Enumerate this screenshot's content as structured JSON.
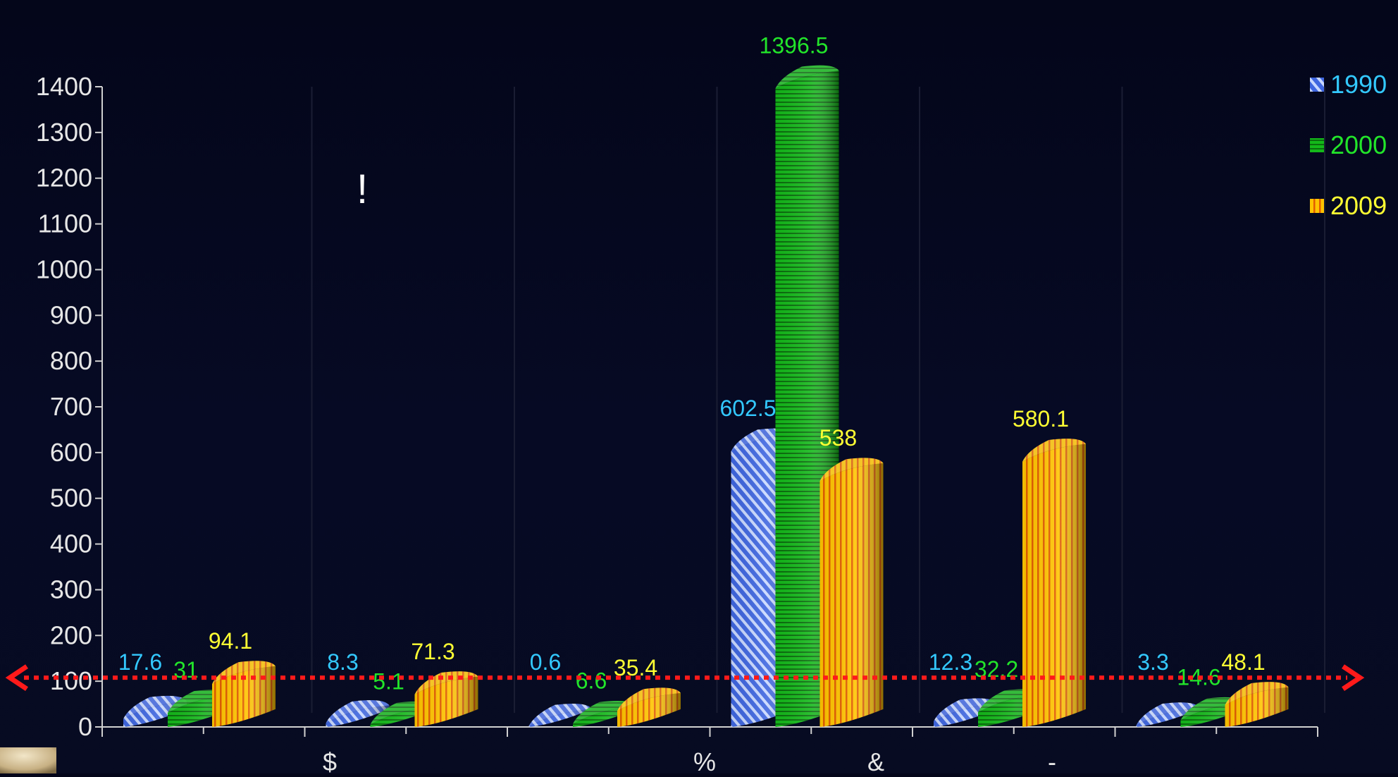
{
  "chart_data": {
    "type": "bar",
    "title": "",
    "annotation": "!",
    "categories": [
      "",
      "$",
      "",
      "%",
      "&",
      "-"
    ],
    "series": [
      {
        "name": "1990",
        "values": [
          17.6,
          8.3,
          0.6,
          602.5,
          12.3,
          3.3
        ],
        "color": "#4f7df5",
        "label_color": "#33c9ff"
      },
      {
        "name": "2000",
        "values": [
          31,
          5.1,
          6.6,
          1396.5,
          32.2,
          14.6
        ],
        "color": "#19c21f",
        "label_color": "#22e52a"
      },
      {
        "name": "2009",
        "values": [
          94.1,
          71.3,
          35.4,
          538,
          580.1,
          48.1
        ],
        "color": "#f5b400",
        "label_color": "#ffff33"
      }
    ],
    "data_labels": [
      [
        "17.6",
        "8.3",
        "0.6",
        "602.5",
        "12.3",
        "3.3"
      ],
      [
        "31",
        "5.1",
        "6.6",
        "1396.5",
        "32.2",
        "14.6"
      ],
      [
        "94.1",
        "71.3",
        "35.4",
        "538",
        "580.1",
        "48.1"
      ]
    ],
    "ylim": [
      0,
      1400
    ],
    "yticks": [
      "0",
      "100",
      "200",
      "300",
      "400",
      "500",
      "600",
      "700",
      "800",
      "900",
      "1000",
      "1100",
      "1200",
      "1300",
      "1400"
    ],
    "reference_line": {
      "value": 100,
      "color": "#ff1a1a",
      "style": "dotted",
      "arrows": "both"
    },
    "legend": {
      "position": "top-right",
      "entries": [
        "1990",
        "2000",
        "2009"
      ]
    },
    "grid": false,
    "background": "#05071c"
  }
}
